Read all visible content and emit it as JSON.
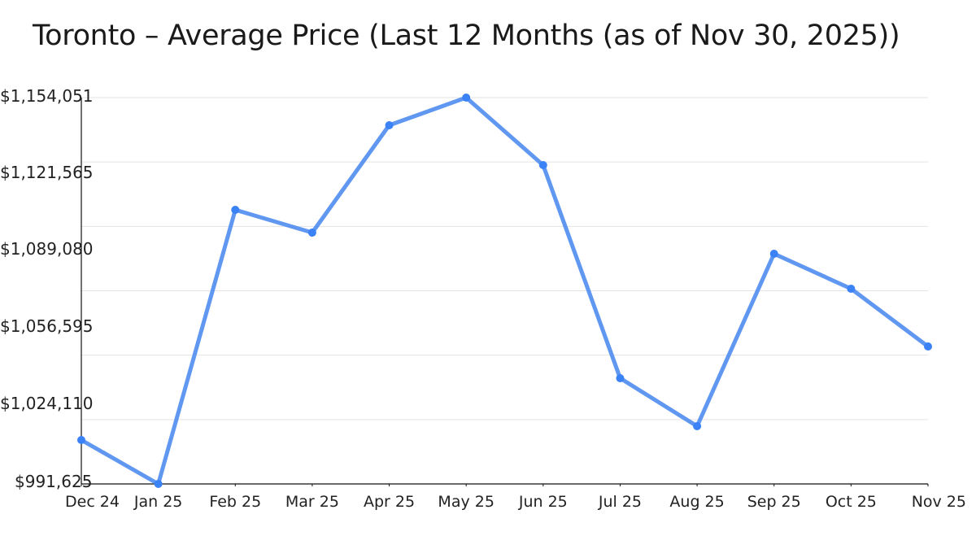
{
  "title": "Toronto – Average Price (Last 12 Months (as of Nov 30, 2025))",
  "colors": {
    "line": "#4f8cf0",
    "marker": "#3b82f6",
    "grid": "#e3e3e3",
    "axis": "#111111"
  },
  "chart_data": {
    "type": "line",
    "title": "Toronto – Average Price (Last 12 Months (as of Nov 30, 2025))",
    "xlabel": "",
    "ylabel": "",
    "categories": [
      "Dec 24",
      "Jan 25",
      "Feb 25",
      "Mar 25",
      "Apr 25",
      "May 25",
      "Jun 25",
      "Jul 25",
      "Aug 25",
      "Sep 25",
      "Oct 25",
      "Nov 25"
    ],
    "series": [
      {
        "name": "Average Price",
        "values": [
          1010090,
          991625,
          1106860,
          1097290,
          1142430,
          1154051,
          1125670,
          1036080,
          1015900,
          1088400,
          1073690,
          1049420
        ]
      }
    ],
    "ylim": [
      991625,
      1154051
    ],
    "yticks": [
      "$991,625",
      "$1,024,110",
      "$1,056,595",
      "$1,089,080",
      "$1,121,565",
      "$1,154,051"
    ],
    "grid": true,
    "legend": "none"
  }
}
